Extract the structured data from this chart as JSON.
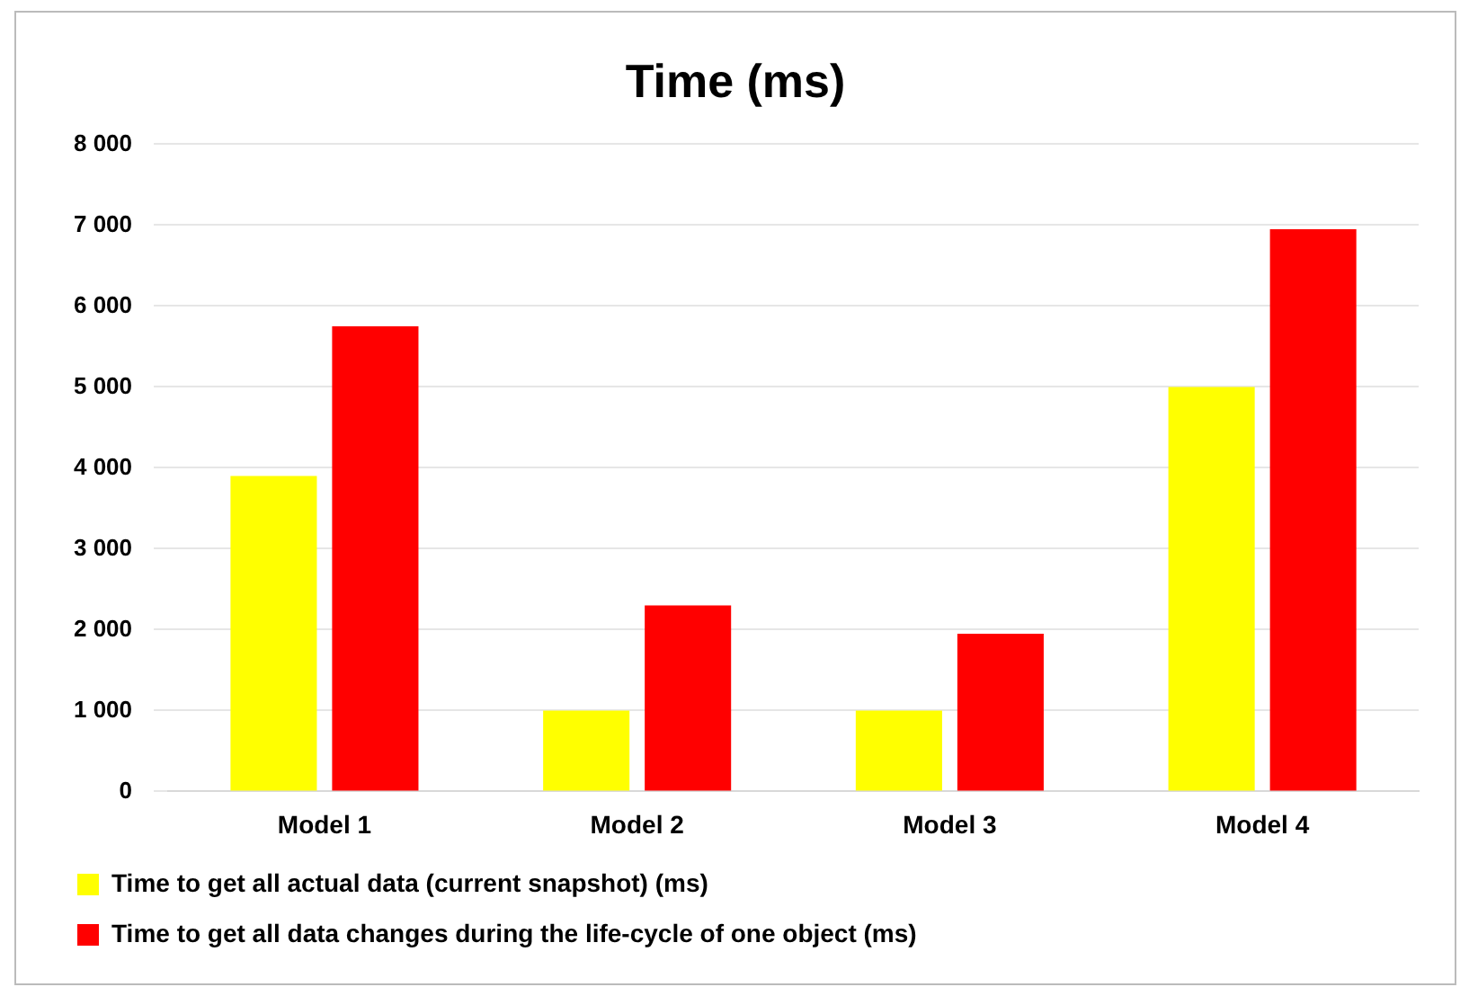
{
  "chart_data": {
    "type": "bar",
    "title": "Time (ms)",
    "categories": [
      "Model 1",
      "Model 2",
      "Model 3",
      "Model 4"
    ],
    "series": [
      {
        "name": "Time to get all actual data (current snapshot) (ms)",
        "color": "#ffff00",
        "values": [
          3900,
          1000,
          1000,
          5000
        ]
      },
      {
        "name": "Time to get all data changes during the life-cycle of one object (ms)",
        "color": "#ff0000",
        "values": [
          5750,
          2300,
          1950,
          6950
        ]
      }
    ],
    "ylim": [
      0,
      8000
    ],
    "yticks": [
      0,
      {
        "value": 1000,
        "label": "1 000"
      },
      {
        "value": 2000,
        "label": "2 000"
      },
      {
        "value": 3000,
        "label": "3 000"
      },
      {
        "value": 4000,
        "label": "4 000"
      },
      {
        "value": 5000,
        "label": "5 000"
      },
      {
        "value": 6000,
        "label": "6 000"
      },
      {
        "value": 7000,
        "label": "7 000"
      },
      {
        "value": 8000,
        "label": "8 000"
      }
    ],
    "grid": "y",
    "legend": "bottom"
  }
}
